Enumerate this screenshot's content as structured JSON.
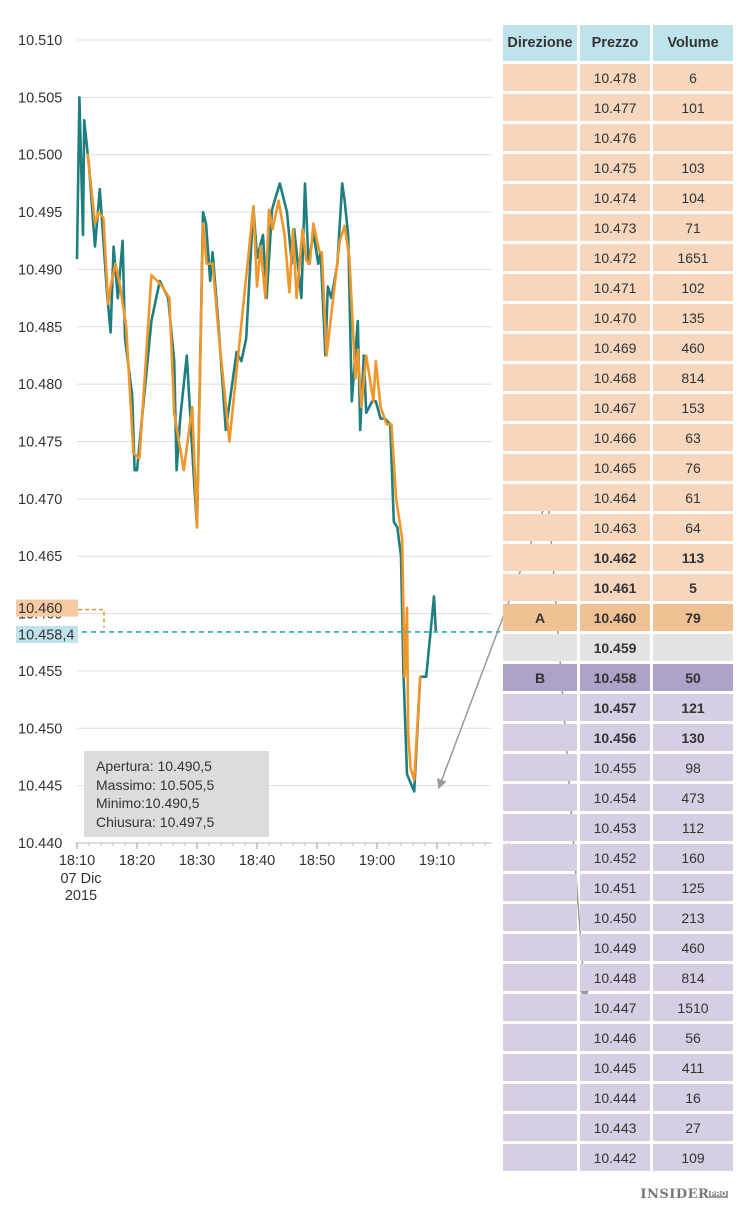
{
  "chart_data": {
    "type": "line",
    "ylim": [
      10.44,
      10.51
    ],
    "y_ticks": [
      "10.510",
      "10.505",
      "10.500",
      "10.495",
      "10.490",
      "10.485",
      "10.480",
      "10.475",
      "10.470",
      "10.465",
      "10.460",
      "10.455",
      "10.450",
      "10.445",
      "10.440"
    ],
    "x_ticks": [
      {
        "label": "18:10",
        "minute": 0
      },
      {
        "label": "18:20",
        "minute": 10
      },
      {
        "label": "18:30",
        "minute": 20
      },
      {
        "label": "18:40",
        "minute": 30
      },
      {
        "label": "18:50",
        "minute": 40
      },
      {
        "label": "19:00",
        "minute": 50
      },
      {
        "label": "19:10",
        "minute": 60
      }
    ],
    "x_date_label": [
      "07 Dic",
      "2015"
    ],
    "xlim_minutes": [
      0,
      72
    ],
    "colors": {
      "series_main": "#1f7f7f",
      "series_overlay": "#f0962a",
      "grid": "#dddddd",
      "current_price": "#3fb8c2",
      "marker_orange": "#f6c9a0",
      "marker_blue": "#bfe3ea"
    },
    "series": [
      {
        "values": [
          [
            0,
            10.491
          ],
          [
            0.4,
            10.505
          ],
          [
            1,
            10.493
          ],
          [
            1.2,
            10.503
          ],
          [
            2,
            10.499
          ],
          [
            3,
            10.492
          ],
          [
            3.8,
            10.497
          ],
          [
            5,
            10.488
          ],
          [
            5.6,
            10.4845
          ],
          [
            6.1,
            10.492
          ],
          [
            6.8,
            10.4875
          ],
          [
            7.6,
            10.4925
          ],
          [
            8,
            10.484
          ],
          [
            9.2,
            10.479
          ],
          [
            9.6,
            10.4725
          ],
          [
            10,
            10.4725
          ],
          [
            12.4,
            10.4855
          ],
          [
            13.4,
            10.488
          ],
          [
            13.8,
            10.489
          ],
          [
            15.2,
            10.4875
          ],
          [
            16.2,
            10.482
          ],
          [
            16.6,
            10.4725
          ],
          [
            17.2,
            10.477
          ],
          [
            18.3,
            10.4825
          ],
          [
            19.4,
            10.4725
          ],
          [
            20,
            10.4675
          ],
          [
            21,
            10.495
          ],
          [
            21.5,
            10.494
          ],
          [
            22.2,
            10.489
          ],
          [
            22.6,
            10.4915
          ],
          [
            23.6,
            10.485
          ],
          [
            24.8,
            10.476
          ],
          [
            26.6,
            10.4828
          ],
          [
            27.4,
            10.482
          ],
          [
            28.2,
            10.484
          ],
          [
            29.4,
            10.4955
          ],
          [
            30,
            10.491
          ],
          [
            31,
            10.493
          ],
          [
            31.6,
            10.4875
          ],
          [
            32.5,
            10.4952
          ],
          [
            33.8,
            10.4975
          ],
          [
            35,
            10.495
          ],
          [
            35.8,
            10.4905
          ],
          [
            36.2,
            10.4935
          ],
          [
            37.4,
            10.4875
          ],
          [
            38,
            10.4975
          ],
          [
            38.6,
            10.4905
          ],
          [
            39.4,
            10.4932
          ],
          [
            40.2,
            10.4905
          ],
          [
            40.6,
            10.4915
          ],
          [
            41.4,
            10.4825
          ],
          [
            41.8,
            10.4885
          ],
          [
            42.4,
            10.4875
          ],
          [
            43.4,
            10.4905
          ],
          [
            44.2,
            10.4975
          ],
          [
            44.6,
            10.496
          ],
          [
            45.2,
            10.493
          ],
          [
            45.8,
            10.4785
          ],
          [
            46.8,
            10.4855
          ],
          [
            47.2,
            10.476
          ],
          [
            47.8,
            10.4825
          ],
          [
            48.2,
            10.4775
          ],
          [
            49.2,
            10.4785
          ],
          [
            49.8,
            10.4785
          ],
          [
            50.6,
            10.477
          ],
          [
            51.3,
            10.477
          ],
          [
            52.2,
            10.4765
          ],
          [
            52.8,
            10.468
          ],
          [
            53.4,
            10.4675
          ],
          [
            54,
            10.465
          ],
          [
            54.4,
            10.455
          ],
          [
            55,
            10.446
          ],
          [
            56.2,
            10.4445
          ],
          [
            57.2,
            10.4545
          ],
          [
            57.6,
            10.4545
          ],
          [
            58.2,
            10.4545
          ],
          [
            59.5,
            10.4615
          ],
          [
            59.8,
            10.4585
          ]
        ]
      },
      {
        "values": [
          [
            1.8,
            10.5
          ],
          [
            3,
            10.494
          ],
          [
            3.6,
            10.495
          ],
          [
            4.4,
            10.4945
          ],
          [
            5.2,
            10.487
          ],
          [
            5.6,
            10.4885
          ],
          [
            6.4,
            10.4905
          ],
          [
            7.2,
            10.4885
          ],
          [
            8.2,
            10.485
          ],
          [
            9.4,
            10.474
          ],
          [
            10.4,
            10.4735
          ],
          [
            12.4,
            10.4895
          ],
          [
            13.4,
            10.489
          ],
          [
            14.2,
            10.4885
          ],
          [
            15.4,
            10.4875
          ],
          [
            16.2,
            10.4775
          ],
          [
            17.8,
            10.4725
          ],
          [
            19.2,
            10.478
          ],
          [
            20,
            10.4675
          ],
          [
            21,
            10.494
          ],
          [
            21.6,
            10.4905
          ],
          [
            22.6,
            10.4905
          ],
          [
            23.6,
            10.4845
          ],
          [
            25.4,
            10.475
          ],
          [
            29.4,
            10.4955
          ],
          [
            30,
            10.4885
          ],
          [
            30.6,
            10.492
          ],
          [
            31.4,
            10.4875
          ],
          [
            32,
            10.4952
          ],
          [
            32.6,
            10.4935
          ],
          [
            33.6,
            10.496
          ],
          [
            34.6,
            10.493
          ],
          [
            35.4,
            10.488
          ],
          [
            36,
            10.4935
          ],
          [
            36.6,
            10.4875
          ],
          [
            37.6,
            10.4935
          ],
          [
            38.2,
            10.4908
          ],
          [
            38.8,
            10.4905
          ],
          [
            39.4,
            10.494
          ],
          [
            40.4,
            10.4915
          ],
          [
            40.8,
            10.4915
          ],
          [
            41.6,
            10.4825
          ],
          [
            43.8,
            10.4925
          ],
          [
            44.6,
            10.4938
          ],
          [
            45.4,
            10.491
          ],
          [
            46.4,
            10.4805
          ],
          [
            46.8,
            10.483
          ],
          [
            47.4,
            10.478
          ],
          [
            48.2,
            10.4825
          ],
          [
            49.4,
            10.4785
          ],
          [
            49.8,
            10.482
          ],
          [
            50.6,
            10.478
          ],
          [
            51.6,
            10.4765
          ],
          [
            52.4,
            10.4765
          ],
          [
            53.2,
            10.47
          ],
          [
            54.2,
            10.4665
          ],
          [
            54.6,
            10.4545
          ],
          [
            55,
            10.4605
          ],
          [
            55.2,
            10.4495
          ],
          [
            55.6,
            10.4465
          ],
          [
            56.2,
            10.4455
          ],
          [
            57.2,
            10.4545
          ]
        ]
      }
    ],
    "current_price_line": 10.4584,
    "markers": [
      {
        "label": "10.460",
        "value": 10.46,
        "style": "orange"
      },
      {
        "label": "10.458,4",
        "value": 10.4584,
        "style": "blue"
      }
    ],
    "arrows": [
      {
        "from_price": "10.464",
        "to_price_value": 10.4445
      },
      {
        "from_price": "10.464",
        "to_price": "10.447"
      }
    ]
  },
  "info_box": {
    "apertura": "Apertura: 10.490,5",
    "massimo": "Massimo: 10.505,5",
    "minimo": "Minimo:10.490,5",
    "chiusura": "Chiusura: 10.497,5"
  },
  "table": {
    "headers": [
      "Direzione",
      "Prezzo",
      "Volume"
    ],
    "rows": [
      {
        "dir": "",
        "price": "10.478",
        "vol": "6",
        "kind": "ask"
      },
      {
        "dir": "",
        "price": "10.477",
        "vol": "101",
        "kind": "ask"
      },
      {
        "dir": "",
        "price": "10.476",
        "vol": "",
        "kind": "ask"
      },
      {
        "dir": "",
        "price": "10.475",
        "vol": "103",
        "kind": "ask"
      },
      {
        "dir": "",
        "price": "10.474",
        "vol": "104",
        "kind": "ask"
      },
      {
        "dir": "",
        "price": "10.473",
        "vol": "71",
        "kind": "ask"
      },
      {
        "dir": "",
        "price": "10.472",
        "vol": "1651",
        "kind": "ask"
      },
      {
        "dir": "",
        "price": "10.471",
        "vol": "102",
        "kind": "ask"
      },
      {
        "dir": "",
        "price": "10.470",
        "vol": "135",
        "kind": "ask"
      },
      {
        "dir": "",
        "price": "10.469",
        "vol": "460",
        "kind": "ask"
      },
      {
        "dir": "",
        "price": "10.468",
        "vol": "814",
        "kind": "ask"
      },
      {
        "dir": "",
        "price": "10.467",
        "vol": "153",
        "kind": "ask"
      },
      {
        "dir": "",
        "price": "10.466",
        "vol": "63",
        "kind": "ask"
      },
      {
        "dir": "",
        "price": "10.465",
        "vol": "76",
        "kind": "ask"
      },
      {
        "dir": "",
        "price": "10.464",
        "vol": "61",
        "kind": "ask"
      },
      {
        "dir": "",
        "price": "10.463",
        "vol": "64",
        "kind": "ask"
      },
      {
        "dir": "",
        "price": "10.462",
        "vol": "113",
        "kind": "ask bold"
      },
      {
        "dir": "",
        "price": "10.461",
        "vol": "5",
        "kind": "ask bold"
      },
      {
        "dir": "A",
        "price": "10.460",
        "vol": "79",
        "kind": "rowA bold"
      },
      {
        "dir": "",
        "price": "10.459",
        "vol": "",
        "kind": "mid bold"
      },
      {
        "dir": "B",
        "price": "10.458",
        "vol": "50",
        "kind": "rowB bold"
      },
      {
        "dir": "",
        "price": "10.457",
        "vol": "121",
        "kind": "bid bold"
      },
      {
        "dir": "",
        "price": "10.456",
        "vol": "130",
        "kind": "bid bold"
      },
      {
        "dir": "",
        "price": "10.455",
        "vol": "98",
        "kind": "bid"
      },
      {
        "dir": "",
        "price": "10.454",
        "vol": "473",
        "kind": "bid"
      },
      {
        "dir": "",
        "price": "10.453",
        "vol": "112",
        "kind": "bid"
      },
      {
        "dir": "",
        "price": "10.452",
        "vol": "160",
        "kind": "bid"
      },
      {
        "dir": "",
        "price": "10.451",
        "vol": "125",
        "kind": "bid"
      },
      {
        "dir": "",
        "price": "10.450",
        "vol": "213",
        "kind": "bid"
      },
      {
        "dir": "",
        "price": "10.449",
        "vol": "460",
        "kind": "bid"
      },
      {
        "dir": "",
        "price": "10.448",
        "vol": "814",
        "kind": "bid"
      },
      {
        "dir": "",
        "price": "10.447",
        "vol": "1510",
        "kind": "bid"
      },
      {
        "dir": "",
        "price": "10.446",
        "vol": "56",
        "kind": "bid"
      },
      {
        "dir": "",
        "price": "10.445",
        "vol": "411",
        "kind": "bid"
      },
      {
        "dir": "",
        "price": "10.444",
        "vol": "16",
        "kind": "bid"
      },
      {
        "dir": "",
        "price": "10.443",
        "vol": "27",
        "kind": "bid"
      },
      {
        "dir": "",
        "price": "10.442",
        "vol": "109",
        "kind": "bid"
      }
    ]
  },
  "brand": {
    "name": "INSIDER",
    "suffix": "PRO"
  }
}
